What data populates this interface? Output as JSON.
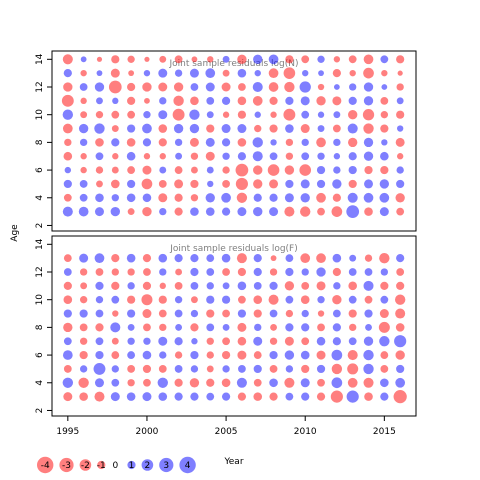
{
  "chart_data": [
    {
      "type": "scatter",
      "title": "Joint sample residuals log(N)",
      "ylabel": "Age",
      "x_ticks": [
        1995,
        2000,
        2005,
        2010,
        2015
      ],
      "y_ticks": [
        2,
        4,
        6,
        8,
        10,
        12,
        14
      ],
      "xlim": [
        1994,
        2017
      ],
      "ylim": [
        1.6,
        14.6
      ],
      "years": [
        1995,
        1996,
        1997,
        1998,
        1999,
        2000,
        2001,
        2002,
        2003,
        2004,
        2005,
        2006,
        2007,
        2008,
        2009,
        2010,
        2011,
        2012,
        2013,
        2014,
        2015,
        2016
      ],
      "ages": [
        3,
        4,
        5,
        6,
        7,
        8,
        9,
        10,
        11,
        12,
        13,
        14
      ],
      "sign_encoding": "positive = blue, negative = red",
      "residuals": [
        [
          1.5,
          -0.9,
          1.0,
          0.6,
          -1.1,
          -0.8,
          -1.4,
          1.6,
          -2.1,
          -1.3,
          1.0,
          -1.5
        ],
        [
          1.4,
          0.9,
          0.9,
          -0.6,
          -0.6,
          0.8,
          1.3,
          -0.7,
          -0.6,
          0.9,
          -0.6,
          0.5
        ],
        [
          1.2,
          1.1,
          -0.7,
          -0.8,
          0.9,
          -1.1,
          1.6,
          -0.8,
          0.7,
          1.3,
          0.5,
          -0.4
        ],
        [
          1.3,
          0.8,
          -1.1,
          -0.7,
          -0.6,
          1.0,
          -0.7,
          -0.9,
          0.6,
          -2.4,
          -1.2,
          -1.0
        ],
        [
          -0.7,
          1.1,
          1.0,
          -0.9,
          1.1,
          -1.1,
          1.0,
          -0.9,
          -1.0,
          -1.0,
          -0.5,
          -0.8
        ],
        [
          -1.3,
          1.1,
          -1.7,
          -1.2,
          -0.6,
          1.0,
          1.4,
          0.8,
          -0.5,
          -1.3,
          0.6,
          -0.4
        ],
        [
          0.8,
          -1.2,
          -0.9,
          0.7,
          -0.6,
          -1.0,
          -1.1,
          1.2,
          0.8,
          -1.2,
          1.2,
          -0.7
        ],
        [
          -1.0,
          -1.0,
          -1.2,
          -0.9,
          0.7,
          0.8,
          1.3,
          -2.1,
          -1.6,
          -1.3,
          0.8,
          -0.9
        ],
        [
          1.1,
          -0.8,
          -1.0,
          -0.7,
          -0.8,
          -1.2,
          1.3,
          1.6,
          -1.1,
          0.9,
          1.2,
          -0.5
        ],
        [
          1.1,
          1.3,
          0.6,
          0.7,
          -1.2,
          1.2,
          -1.0,
          0.7,
          0.9,
          1.2,
          1.4,
          -0.6
        ],
        [
          1.0,
          1.4,
          -0.9,
          -0.8,
          0.8,
          1.0,
          1.2,
          -0.6,
          1.0,
          -1.2,
          -0.7,
          0.7
        ],
        [
          1.2,
          -1.6,
          -2.2,
          -2.4,
          1.0,
          -1.1,
          1.2,
          -1.0,
          -1.1,
          -0.9,
          1.1,
          -1.3
        ],
        [
          1.3,
          1.0,
          -1.3,
          -1.3,
          1.5,
          1.6,
          -0.8,
          0.6,
          -1.4,
          1.5,
          0.6,
          1.3
        ],
        [
          1.2,
          1.0,
          -1.2,
          -2.0,
          0.9,
          0.6,
          -1.0,
          -0.6,
          -1.0,
          -1.4,
          -1.4,
          1.4
        ],
        [
          -1.5,
          1.2,
          1.0,
          -1.3,
          -0.8,
          -0.8,
          1.1,
          -2.1,
          1.0,
          -1.6,
          -2.0,
          -1.0
        ],
        [
          -1.6,
          1.3,
          1.2,
          -2.0,
          0.9,
          0.8,
          -1.2,
          0.9,
          1.2,
          1.9,
          0.6,
          -0.9
        ],
        [
          -0.9,
          -1.4,
          1.0,
          1.0,
          0.8,
          -1.4,
          0.7,
          0.6,
          -1.3,
          -0.6,
          0.5,
          0.8
        ],
        [
          -1.7,
          -1.0,
          1.3,
          0.8,
          0.6,
          0.8,
          -0.9,
          0.7,
          -1.2,
          0.5,
          -1.0,
          -0.6
        ],
        [
          2.4,
          1.5,
          -1.0,
          1.0,
          1.0,
          -1.3,
          1.5,
          -1.3,
          1.0,
          0.8,
          -0.6,
          -0.9
        ],
        [
          -1.1,
          1.4,
          1.2,
          -1.0,
          1.3,
          1.3,
          -1.6,
          -1.9,
          1.3,
          1.3,
          -1.7,
          -1.4
        ],
        [
          1.2,
          1.4,
          1.3,
          -1.0,
          1.1,
          0.6,
          -1.0,
          -0.8,
          -0.9,
          0.5,
          -0.6,
          0.9
        ],
        [
          -0.9,
          -1.3,
          1.0,
          0.8,
          -0.6,
          -1.2,
          0.6,
          -1.0,
          0.7,
          -0.8,
          -0.4,
          -1.0
        ]
      ]
    },
    {
      "type": "scatter",
      "title": "Joint sample residuals log(F)",
      "x_ticks": [
        1995,
        2000,
        2005,
        2010,
        2015
      ],
      "y_ticks": [
        2,
        4,
        6,
        8,
        10,
        12,
        14
      ],
      "xlim": [
        1994,
        2017
      ],
      "ylim": [
        1.6,
        14.6
      ],
      "years": [
        1995,
        1996,
        1997,
        1998,
        1999,
        2000,
        2001,
        2002,
        2003,
        2004,
        2005,
        2006,
        2007,
        2008,
        2009,
        2010,
        2011,
        2012,
        2013,
        2014,
        2015,
        2016
      ],
      "ages": [
        3,
        4,
        5,
        6,
        7,
        8,
        9,
        10,
        11,
        12,
        13
      ],
      "sign_encoding": "positive = blue, negative = red",
      "residuals": [
        [
          -1.2,
          1.6,
          -0.9,
          1.4,
          0.9,
          -1.3,
          1.0,
          -1.1,
          -1.0,
          0.9,
          -0.9
        ],
        [
          -1.1,
          -1.6,
          0.8,
          -1.0,
          -0.8,
          -0.9,
          1.0,
          -0.8,
          -0.7,
          -0.8,
          1.2
        ],
        [
          -1.5,
          1.2,
          2.1,
          1.0,
          0.9,
          -1.0,
          0.9,
          0.8,
          1.0,
          -0.9,
          1.4
        ],
        [
          1.2,
          0.9,
          0.8,
          -0.9,
          -0.7,
          1.5,
          -0.6,
          0.9,
          -1.0,
          -0.8,
          -1.0
        ],
        [
          1.1,
          -0.8,
          -0.9,
          0.9,
          0.8,
          0.7,
          1.0,
          -1.0,
          0.8,
          -0.8,
          1.1
        ],
        [
          1.2,
          -0.9,
          -1.0,
          1.1,
          0.8,
          -0.9,
          -1.2,
          -1.8,
          -1.0,
          -0.9,
          -1.0
        ],
        [
          1.1,
          1.6,
          -0.9,
          0.8,
          1.2,
          -0.8,
          -0.9,
          -1.0,
          -0.6,
          0.8,
          1.1
        ],
        [
          1.0,
          -1.0,
          0.9,
          -0.8,
          1.0,
          0.7,
          0.9,
          0.8,
          -0.9,
          -0.7,
          1.0
        ],
        [
          1.0,
          -1.3,
          0.8,
          1.0,
          0.6,
          -1.0,
          0.8,
          -0.7,
          0.9,
          1.0,
          1.0
        ],
        [
          0.9,
          -1.0,
          -0.7,
          -0.8,
          -0.8,
          0.9,
          -1.0,
          1.0,
          0.8,
          0.9,
          0.9
        ],
        [
          1.0,
          -1.1,
          0.8,
          -1.0,
          -0.9,
          0.7,
          -0.9,
          1.0,
          0.7,
          -0.9,
          1.1
        ],
        [
          -1.0,
          1.5,
          0.9,
          -1.2,
          -1.1,
          -1.2,
          1.0,
          -0.9,
          1.1,
          -1.0,
          -1.5
        ],
        [
          -1.1,
          -0.9,
          1.0,
          -0.9,
          1.2,
          0.8,
          -1.0,
          -1.1,
          0.9,
          1.0,
          1.0
        ],
        [
          -1.0,
          1.1,
          -0.9,
          1.0,
          -0.8,
          -0.7,
          0.9,
          -1.5,
          1.0,
          -0.8,
          -0.5
        ],
        [
          0.9,
          -1.5,
          0.8,
          1.3,
          -1.2,
          1.0,
          -0.8,
          0.9,
          -1.3,
          1.0,
          0.9
        ],
        [
          1.0,
          1.2,
          -1.0,
          1.1,
          -0.9,
          1.0,
          0.8,
          -1.1,
          -0.9,
          0.8,
          -1.4
        ],
        [
          -1.0,
          -0.9,
          1.0,
          -1.2,
          1.1,
          -0.9,
          -0.6,
          0.8,
          -1.2,
          1.3,
          -1.4
        ],
        [
          -2.2,
          1.7,
          -1.6,
          1.7,
          1.0,
          1.0,
          0.9,
          -1.3,
          0.8,
          -1.0,
          1.1
        ],
        [
          2.2,
          -1.4,
          -1.8,
          -1.5,
          0.9,
          -0.8,
          -1.0,
          0.9,
          -1.1,
          0.9,
          0.7
        ],
        [
          -1.1,
          -1.5,
          1.6,
          1.6,
          1.3,
          0.7,
          1.0,
          -0.9,
          1.5,
          0.9,
          -0.8
        ],
        [
          1.0,
          1.1,
          -0.9,
          -0.9,
          1.6,
          -1.8,
          -1.2,
          0.9,
          -1.0,
          0.8,
          -1.6
        ],
        [
          -2.6,
          1.4,
          1.0,
          -1.3,
          2.2,
          -1.1,
          -1.5,
          -1.6,
          -1.0,
          -0.9,
          1.0
        ]
      ]
    }
  ],
  "axis": {
    "xlabel": "Year",
    "ylabel": "Age"
  },
  "legend": {
    "values": [
      -4,
      -3,
      -2,
      -1,
      0,
      1,
      2,
      3,
      4
    ],
    "labels": [
      "-4",
      "-3",
      "-2",
      "-1",
      "0",
      "1",
      "2",
      "3",
      "4"
    ]
  },
  "colors": {
    "positive": "#0000ff",
    "negative": "#ff0000",
    "title": "#808080"
  }
}
